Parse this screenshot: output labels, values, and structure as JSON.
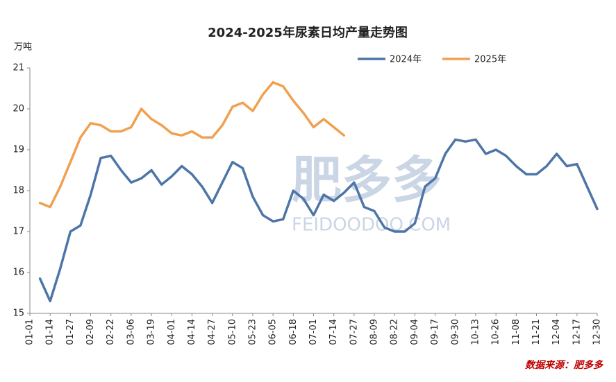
{
  "chart_data": {
    "type": "line",
    "title": "2024-2025年尿素日均产量走势图",
    "y_unit": "万吨",
    "source": "数据来源：肥多多",
    "watermark": "肥多多",
    "watermark_url": "FEIDOODOO.COM",
    "categories": [
      "01-01",
      null,
      "01-14",
      null,
      "01-27",
      null,
      "02-09",
      null,
      "02-22",
      null,
      "03-06",
      null,
      "03-19",
      null,
      "04-01",
      null,
      "04-14",
      null,
      "04-27",
      null,
      "05-10",
      null,
      "05-23",
      null,
      "06-05",
      null,
      "06-18",
      null,
      "07-01",
      null,
      "07-14",
      null,
      "07-27",
      null,
      "08-09",
      null,
      "08-22",
      null,
      "09-04",
      null,
      "09-17",
      null,
      "09-30",
      null,
      "10-13",
      null,
      "10-26",
      null,
      "11-08",
      null,
      "11-21",
      null,
      "12-04",
      null,
      "12-17",
      null,
      "12-30"
    ],
    "series": [
      {
        "name": "2024年",
        "color": "#4e75a8",
        "values": [
          null,
          15.85,
          15.3,
          16.1,
          17.0,
          17.15,
          17.9,
          18.8,
          18.85,
          18.5,
          18.2,
          18.3,
          18.5,
          18.15,
          18.35,
          18.6,
          18.4,
          18.1,
          17.7,
          18.2,
          18.7,
          18.55,
          17.85,
          17.4,
          17.25,
          17.3,
          18.0,
          17.8,
          17.4,
          17.9,
          17.75,
          17.95,
          18.2,
          17.6,
          17.5,
          17.1,
          17.0,
          17.0,
          17.2,
          18.1,
          18.3,
          18.9,
          19.25,
          19.2,
          19.25,
          18.9,
          19.0,
          18.85,
          18.6,
          18.4,
          18.4,
          18.6,
          18.9,
          18.6,
          18.65,
          18.1,
          17.55
        ]
      },
      {
        "name": "2025年",
        "color": "#f0a050",
        "values": [
          null,
          17.7,
          17.6,
          18.1,
          18.7,
          19.3,
          19.65,
          19.6,
          19.45,
          19.45,
          19.55,
          20.0,
          19.75,
          19.6,
          19.4,
          19.35,
          19.45,
          19.3,
          19.3,
          19.6,
          20.05,
          20.15,
          19.95,
          20.35,
          20.65,
          20.55,
          20.2,
          19.9,
          19.55,
          19.75,
          19.55,
          19.35,
          null,
          null,
          null,
          null,
          null,
          null,
          null,
          null,
          null,
          null,
          null,
          null,
          null,
          null,
          null,
          null,
          null,
          null,
          null,
          null,
          null,
          null,
          null,
          null,
          null
        ]
      }
    ],
    "ylim": [
      15,
      21
    ],
    "yticks": [
      15,
      16,
      17,
      18,
      19,
      20,
      21
    ],
    "grid": false
  }
}
